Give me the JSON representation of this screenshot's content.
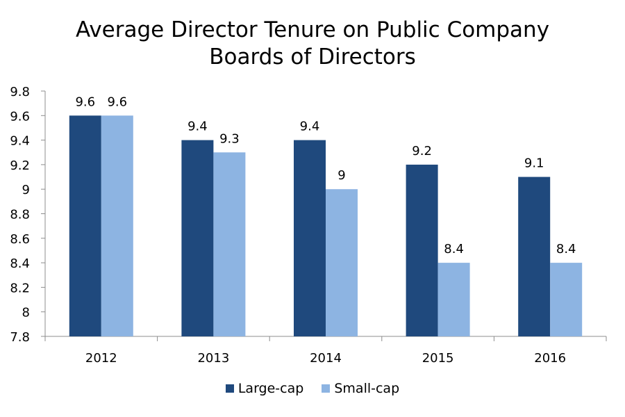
{
  "chart_data": {
    "type": "bar",
    "title_lines": [
      "Average Director Tenure on Public Company",
      "Boards of Directors"
    ],
    "categories": [
      "2012",
      "2013",
      "2014",
      "2015",
      "2016"
    ],
    "series": [
      {
        "name": "Large-cap",
        "color": "#1f497d",
        "values": [
          9.6,
          9.4,
          9.4,
          9.2,
          9.1
        ],
        "labels": [
          "9.6",
          "9.4",
          "9.4",
          "9.2",
          "9.1"
        ]
      },
      {
        "name": "Small-cap",
        "color": "#8db4e2",
        "values": [
          9.6,
          9.3,
          9.0,
          8.4,
          8.4
        ],
        "labels": [
          "9.6",
          "9.3",
          "9",
          "8.4",
          "8.4"
        ]
      }
    ],
    "ylim": [
      7.8,
      9.8
    ],
    "yticks": [
      "7.8",
      "8",
      "8.2",
      "8.4",
      "8.6",
      "8.8",
      "9",
      "9.2",
      "9.4",
      "9.6",
      "9.8"
    ],
    "xlabel": "",
    "ylabel": "",
    "grid": false,
    "legend_position": "bottom"
  }
}
